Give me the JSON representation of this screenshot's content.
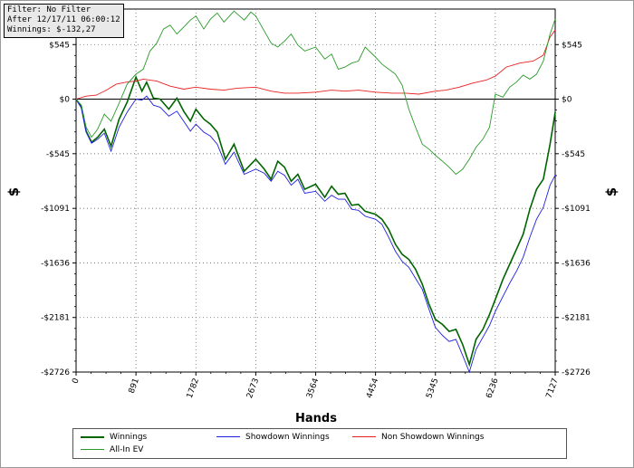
{
  "info_box": {
    "filter": "Filter: No Filter",
    "date": "After 12/17/11 06:00:12",
    "winnings": "Winnings: $-132,27"
  },
  "chart_data": {
    "type": "line",
    "xlabel": "Hands",
    "ylabel": "$",
    "xlim": [
      0,
      7127
    ],
    "ylim": [
      -2726,
      900
    ],
    "x_ticks": [
      0,
      891,
      1782,
      2673,
      3564,
      4454,
      5345,
      6236,
      7127
    ],
    "x_tick_labels": [
      "0",
      "891",
      "1782",
      "2673",
      "3564",
      "4454",
      "5345",
      "6236",
      "7127"
    ],
    "y_ticks": [
      545,
      0,
      -545,
      -1091,
      -1636,
      -2181,
      -2726
    ],
    "y_tick_labels": [
      "$545",
      "$0",
      "-$545",
      "-$1091",
      "-$1636",
      "-$2181",
      "-$2726"
    ],
    "grid": true,
    "legend_position": "bottom",
    "series": [
      {
        "name": "Winnings",
        "color": "#006400",
        "x": [
          0,
          80,
          150,
          230,
          320,
          420,
          520,
          640,
          760,
          891,
          980,
          1050,
          1150,
          1250,
          1380,
          1500,
          1600,
          1700,
          1782,
          1900,
          2000,
          2100,
          2220,
          2350,
          2500,
          2673,
          2800,
          2900,
          3000,
          3100,
          3200,
          3300,
          3400,
          3564,
          3700,
          3800,
          3900,
          4000,
          4100,
          4200,
          4300,
          4454,
          4550,
          4650,
          4750,
          4850,
          4950,
          5050,
          5150,
          5250,
          5345,
          5450,
          5550,
          5650,
          5750,
          5850,
          5950,
          6050,
          6150,
          6236,
          6350,
          6450,
          6550,
          6650,
          6750,
          6850,
          6950,
          7050,
          7127
        ],
        "values": [
          0,
          -80,
          -320,
          -430,
          -380,
          -300,
          -470,
          -200,
          -30,
          220,
          80,
          170,
          10,
          0,
          -100,
          10,
          -120,
          -220,
          -100,
          -200,
          -250,
          -330,
          -600,
          -450,
          -720,
          -600,
          -700,
          -800,
          -620,
          -680,
          -820,
          -750,
          -900,
          -850,
          -980,
          -870,
          -950,
          -940,
          -1060,
          -1050,
          -1120,
          -1150,
          -1200,
          -1300,
          -1450,
          -1550,
          -1600,
          -1700,
          -1850,
          -2050,
          -2200,
          -2250,
          -2320,
          -2300,
          -2450,
          -2650,
          -2400,
          -2300,
          -2150,
          -2000,
          -1800,
          -1650,
          -1500,
          -1350,
          -1100,
          -900,
          -800,
          -450,
          -132
        ]
      },
      {
        "name": "Showdown Winnings",
        "color": "#2020e0",
        "x": [
          0,
          80,
          150,
          230,
          320,
          420,
          520,
          640,
          760,
          891,
          980,
          1050,
          1150,
          1250,
          1380,
          1500,
          1600,
          1700,
          1782,
          1900,
          2000,
          2100,
          2220,
          2350,
          2500,
          2673,
          2800,
          2900,
          3000,
          3100,
          3200,
          3300,
          3400,
          3564,
          3700,
          3800,
          3900,
          4000,
          4100,
          4200,
          4300,
          4454,
          4550,
          4650,
          4750,
          4850,
          4950,
          5050,
          5150,
          5250,
          5345,
          5450,
          5550,
          5650,
          5750,
          5850,
          5950,
          6050,
          6150,
          6236,
          6350,
          6450,
          6550,
          6650,
          6750,
          6850,
          6950,
          7050,
          7127
        ],
        "values": [
          0,
          -90,
          -330,
          -440,
          -400,
          -340,
          -520,
          -280,
          -130,
          0,
          -10,
          30,
          -60,
          -80,
          -170,
          -120,
          -220,
          -320,
          -250,
          -330,
          -370,
          -450,
          -650,
          -530,
          -750,
          -700,
          -740,
          -820,
          -720,
          -760,
          -860,
          -800,
          -940,
          -920,
          -1020,
          -960,
          -1000,
          -1000,
          -1100,
          -1110,
          -1170,
          -1200,
          -1250,
          -1380,
          -1520,
          -1620,
          -1680,
          -1790,
          -1900,
          -2100,
          -2280,
          -2360,
          -2420,
          -2400,
          -2560,
          -2726,
          -2500,
          -2380,
          -2260,
          -2120,
          -1970,
          -1840,
          -1720,
          -1580,
          -1380,
          -1200,
          -1080,
          -860,
          -760
        ]
      },
      {
        "name": "Non Showdown Winnings",
        "color": "#e82020",
        "x": [
          0,
          150,
          300,
          450,
          600,
          750,
          891,
          1000,
          1200,
          1400,
          1600,
          1782,
          2000,
          2200,
          2400,
          2673,
          2900,
          3100,
          3300,
          3564,
          3800,
          4000,
          4200,
          4454,
          4700,
          4900,
          5100,
          5345,
          5500,
          5700,
          5900,
          6100,
          6236,
          6400,
          6600,
          6800,
          6950,
          7050,
          7127
        ],
        "values": [
          0,
          30,
          40,
          90,
          150,
          170,
          180,
          200,
          180,
          130,
          100,
          120,
          100,
          90,
          110,
          120,
          80,
          60,
          60,
          70,
          90,
          80,
          90,
          70,
          60,
          60,
          50,
          80,
          90,
          120,
          160,
          190,
          230,
          320,
          360,
          380,
          440,
          620,
          690
        ]
      },
      {
        "name": "All-In EV",
        "color": "#2a9a2a",
        "x": [
          0,
          80,
          150,
          230,
          320,
          420,
          520,
          640,
          760,
          891,
          1000,
          1100,
          1200,
          1300,
          1400,
          1500,
          1600,
          1700,
          1782,
          1900,
          2000,
          2100,
          2200,
          2350,
          2500,
          2600,
          2673,
          2800,
          2900,
          3000,
          3100,
          3200,
          3300,
          3400,
          3564,
          3700,
          3800,
          3900,
          4000,
          4100,
          4200,
          4300,
          4454,
          4550,
          4650,
          4750,
          4850,
          4950,
          5050,
          5150,
          5250,
          5345,
          5450,
          5550,
          5650,
          5750,
          5850,
          5950,
          6050,
          6150,
          6236,
          6350,
          6450,
          6550,
          6650,
          6750,
          6850,
          6950,
          7050,
          7127
        ],
        "values": [
          0,
          -60,
          -280,
          -380,
          -300,
          -150,
          -220,
          -40,
          150,
          250,
          300,
          480,
          560,
          700,
          740,
          650,
          720,
          790,
          830,
          700,
          800,
          860,
          770,
          880,
          790,
          870,
          830,
          680,
          560,
          520,
          580,
          650,
          540,
          480,
          520,
          400,
          450,
          300,
          320,
          360,
          380,
          520,
          420,
          350,
          300,
          250,
          140,
          -100,
          -280,
          -450,
          -500,
          -560,
          -620,
          -680,
          -750,
          -700,
          -600,
          -480,
          -400,
          -280,
          50,
          20,
          120,
          170,
          240,
          200,
          250,
          380,
          650,
          800
        ]
      }
    ]
  }
}
